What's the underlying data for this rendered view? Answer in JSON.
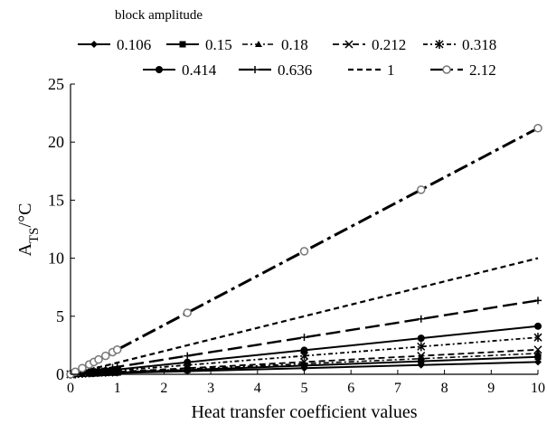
{
  "chart_data": {
    "type": "line",
    "legend_title": "block amplitude",
    "xlabel": "Heat transfer coefficient values",
    "ylabel_main": "A",
    "ylabel_sub": "TS",
    "ylabel_unit": "/°C",
    "xlim": [
      0,
      10
    ],
    "ylim": [
      0,
      25
    ],
    "xticks": [
      "0",
      "1",
      "2",
      "3",
      "4",
      "5",
      "6",
      "7",
      "8",
      "9",
      "10"
    ],
    "yticks": [
      "0",
      "5",
      "10",
      "15",
      "20",
      "25"
    ],
    "grid": false,
    "legend_position": "top",
    "x": [
      0,
      0.1,
      0.25,
      0.4,
      0.5,
      0.6,
      0.75,
      0.9,
      1,
      2.5,
      5,
      7.5,
      10
    ],
    "series": [
      {
        "name": "0.106",
        "values": [
          0,
          0.011,
          0.027,
          0.042,
          0.053,
          0.064,
          0.08,
          0.095,
          0.106,
          0.265,
          0.53,
          0.795,
          1.06
        ]
      },
      {
        "name": "0.15",
        "values": [
          0,
          0.015,
          0.038,
          0.06,
          0.075,
          0.09,
          0.113,
          0.135,
          0.15,
          0.375,
          0.75,
          1.125,
          1.5
        ]
      },
      {
        "name": "0.18",
        "values": [
          0,
          0.018,
          0.045,
          0.072,
          0.09,
          0.108,
          0.135,
          0.162,
          0.18,
          0.45,
          0.9,
          1.35,
          1.8
        ]
      },
      {
        "name": "0.212",
        "values": [
          0,
          0.021,
          0.053,
          0.085,
          0.106,
          0.127,
          0.159,
          0.191,
          0.212,
          0.53,
          1.06,
          1.59,
          2.12
        ]
      },
      {
        "name": "0.318",
        "values": [
          0,
          0.032,
          0.08,
          0.127,
          0.159,
          0.191,
          0.239,
          0.286,
          0.318,
          0.795,
          1.59,
          2.385,
          3.18
        ]
      },
      {
        "name": "0.414",
        "values": [
          0,
          0.041,
          0.104,
          0.166,
          0.207,
          0.248,
          0.311,
          0.373,
          0.414,
          1.035,
          2.07,
          3.105,
          4.14
        ]
      },
      {
        "name": "0.636",
        "values": [
          0,
          0.064,
          0.159,
          0.254,
          0.318,
          0.382,
          0.477,
          0.572,
          0.636,
          1.59,
          3.18,
          4.77,
          6.36
        ]
      },
      {
        "name": "1",
        "values": [
          0,
          0.1,
          0.25,
          0.4,
          0.5,
          0.6,
          0.75,
          0.9,
          1,
          2.5,
          5,
          7.5,
          10
        ]
      },
      {
        "name": "2.12",
        "values": [
          0,
          0.212,
          0.53,
          0.848,
          1.06,
          1.272,
          1.59,
          1.908,
          2.12,
          5.3,
          10.6,
          15.9,
          21.2
        ]
      }
    ]
  }
}
